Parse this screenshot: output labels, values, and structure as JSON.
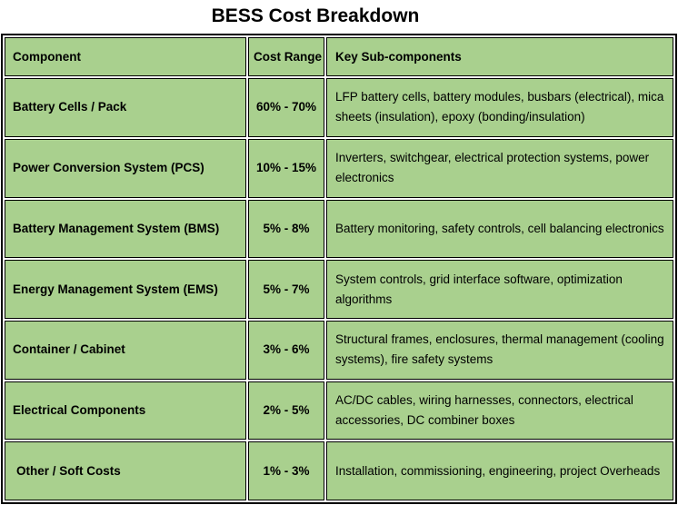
{
  "title": "BESS Cost Breakdown",
  "table": {
    "headers": {
      "component": "Component",
      "cost_range": "Cost Range",
      "sub_components": "Key Sub-components"
    },
    "rows": [
      {
        "component": "Battery Cells / Pack",
        "cost_range": "60% - 70%",
        "sub_components": "LFP battery cells, battery modules, busbars (electrical), mica sheets (insulation), epoxy (bonding/insulation)"
      },
      {
        "component": "Power Conversion System (PCS)",
        "cost_range": "10% - 15%",
        "sub_components": "Inverters, switchgear, electrical protection systems, power electronics"
      },
      {
        "component": "Battery Management System (BMS)",
        "cost_range": "5% - 8%",
        "sub_components": "Battery monitoring, safety controls, cell balancing electronics"
      },
      {
        "component": "Energy Management System (EMS)",
        "cost_range": "5% - 7%",
        "sub_components": "System controls, grid interface software, optimization algorithms"
      },
      {
        "component": "Container / Cabinet",
        "cost_range": "3% - 6%",
        "sub_components": "Structural frames, enclosures, thermal management (cooling systems), fire safety systems"
      },
      {
        "component": "Electrical Components",
        "cost_range": "2% - 5%",
        "sub_components": "AC/DC cables, wiring harnesses, connectors, electrical accessories, DC combiner boxes"
      },
      {
        "component": "Other / Soft Costs",
        "cost_range": "1% - 3%",
        "sub_components": "Installation, commissioning, engineering, project Overheads"
      }
    ]
  },
  "colors": {
    "cell_fill": "#a9d08e",
    "border": "#000000",
    "text": "#000000"
  }
}
